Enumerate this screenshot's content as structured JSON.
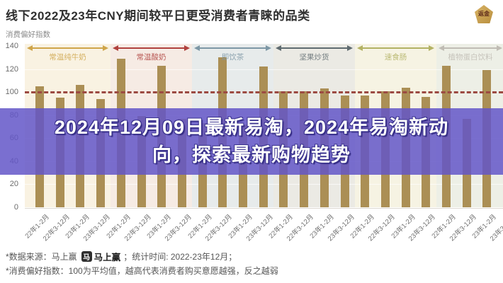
{
  "header": {
    "title": "线下2022及23年CNY期间较平日更受消费者青睐的品类",
    "y_axis_label": "消费偏好指数",
    "corner_logo_text": "返金"
  },
  "overlay": {
    "line1": "2024年12月09日最新易淘，2024年易淘新动",
    "line2": "向，探索最新购物趋势"
  },
  "footer": {
    "source_prefix": "*数据来源：马上赢",
    "logo_mark": "马",
    "logo_name": "马上赢",
    "source_suffix": "；统计时间: 2022-23年12月；",
    "note": "*消费偏好指数：100为平均值，越高代表消费者购买意愿越强，反之越弱"
  },
  "chart_data": {
    "type": "bar",
    "title": "线下2022及23年CNY期间较平日更受消费者青睐的品类",
    "ylabel": "消费偏好指数",
    "ylim": [
      0,
      140
    ],
    "yticks": [
      140,
      120,
      100,
      80,
      60,
      40,
      20,
      0
    ],
    "grid": true,
    "bar_color": "#ab8f55",
    "reference_line": {
      "value": 100,
      "style": "dashed",
      "color": "#9c4a42"
    },
    "x_period_labels": [
      "22年1-2月",
      "22年3-12月",
      "23年1-2月",
      "23年3-12月"
    ],
    "groups": [
      {
        "name": "常温纯牛奶",
        "arrow_color": "#cfa54a",
        "band_color": "#f9f2e2",
        "values": [
          105,
          95,
          106,
          94
        ]
      },
      {
        "name": "常温酸奶",
        "arrow_color": "#b0413e",
        "band_color": "#f6ebe4",
        "values": [
          129,
          79,
          123,
          77
        ]
      },
      {
        "name": "即饮茶",
        "arrow_color": "#7d97a5",
        "band_color": "#e7ebeb",
        "values": [
          73,
          130,
          72,
          122
        ]
      },
      {
        "name": "坚果炒货",
        "arrow_color": "#5f6b70",
        "band_color": "#ebeae4",
        "values": [
          101,
          101,
          103,
          97
        ]
      },
      {
        "name": "速食肠",
        "arrow_color": "#b3b264",
        "band_color": "#f6f3e3",
        "values": [
          97,
          101,
          104,
          96
        ]
      },
      {
        "name": "植物蛋白饮料",
        "arrow_color": "#c0bcb4",
        "band_color": "#edefe6",
        "values": [
          123,
          77,
          119,
          77
        ]
      }
    ]
  }
}
